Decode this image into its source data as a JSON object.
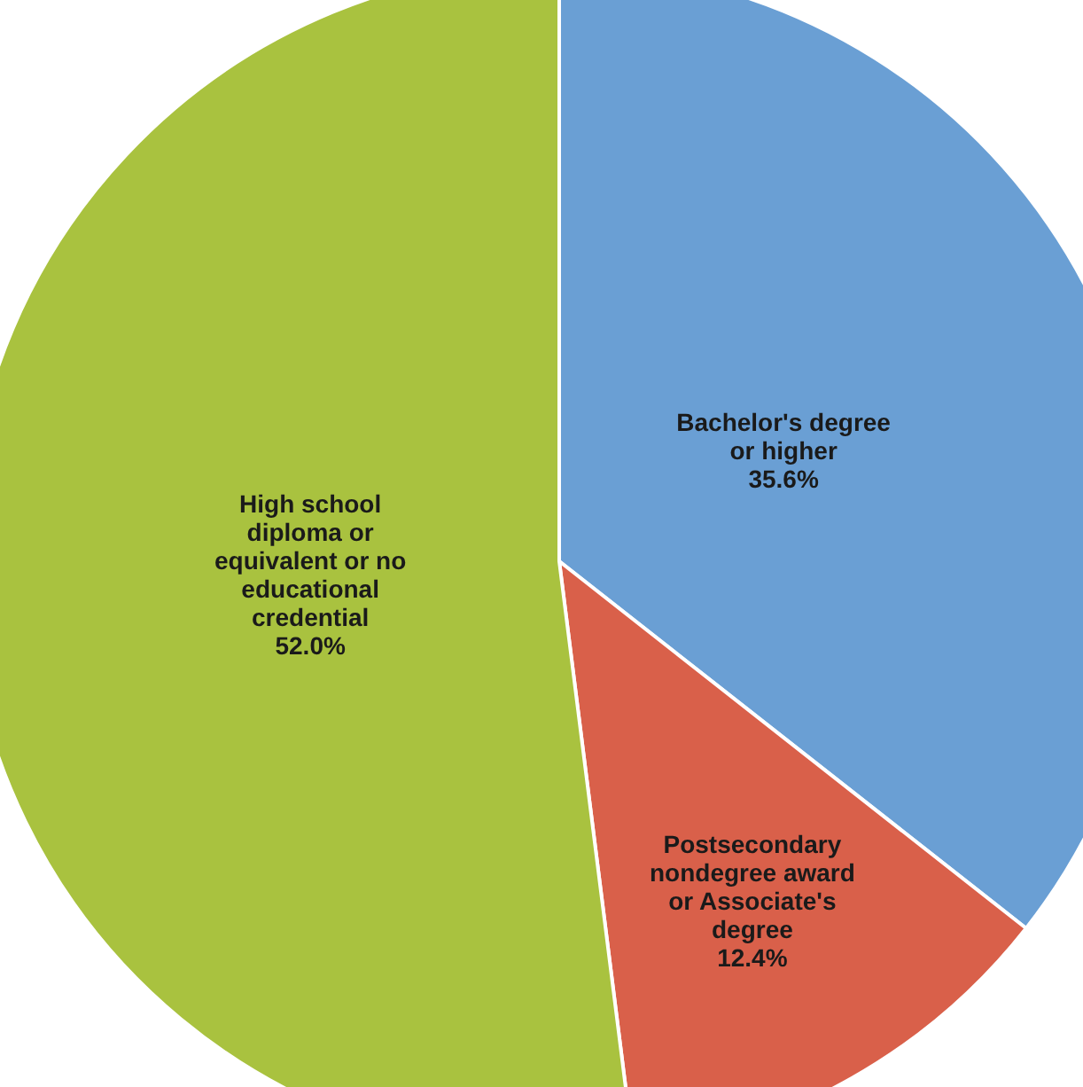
{
  "chart_data": {
    "type": "pie",
    "categories": [
      "Bachelor's degree or higher",
      "Postsecondary nondegree award or Associate's degree",
      "High school diploma or equivalent or no educational credential"
    ],
    "values": [
      35.6,
      12.4,
      52.0
    ],
    "value_labels": [
      "35.6%",
      "12.4%",
      "52.0%"
    ],
    "colors": [
      "#6a9fd4",
      "#d9604a",
      "#a9c23f"
    ],
    "legend": false
  }
}
